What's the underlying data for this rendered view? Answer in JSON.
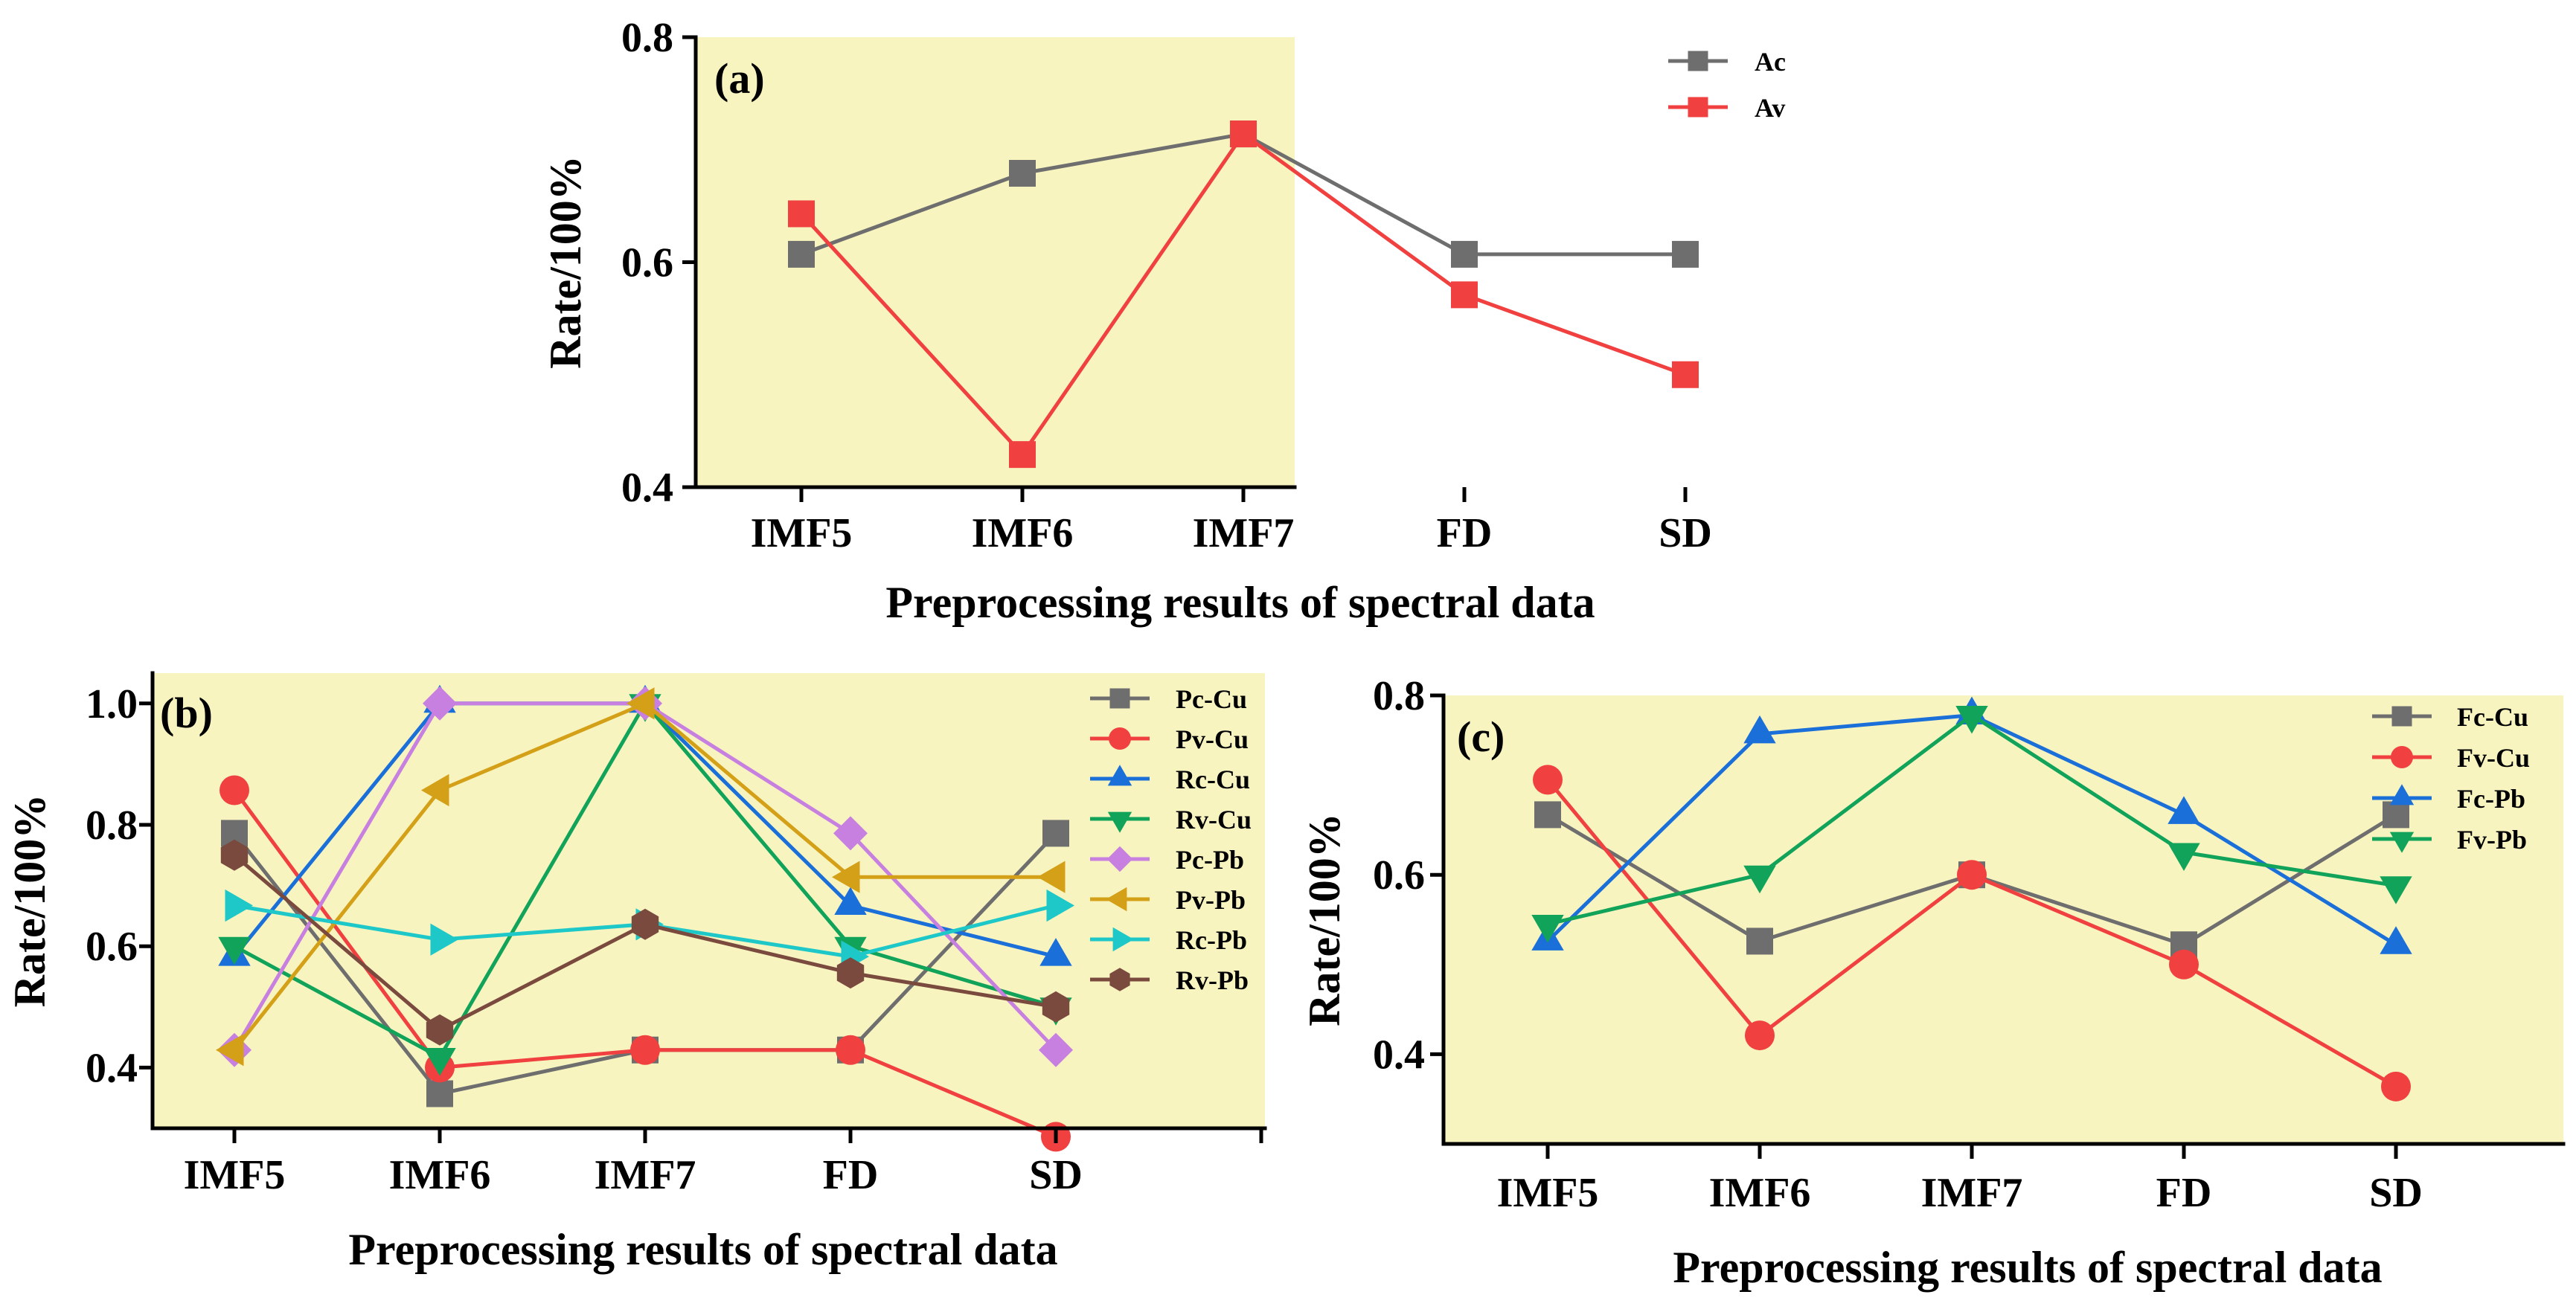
{
  "chart_data": [
    {
      "type": "line",
      "panel_label": "(a)",
      "categories": [
        "IMF5",
        "IMF6",
        "IMF7",
        "FD",
        "SD"
      ],
      "xlabel": "Preprocessing results of spectral data",
      "ylabel": "Rate/100%",
      "ylim": [
        0.4,
        0.8
      ],
      "yticks": [
        0.4,
        0.6,
        0.8
      ],
      "ytick_labels": [
        "0.4",
        "0.6",
        "0.8"
      ],
      "legend_position": "top-right",
      "series": [
        {
          "name": "Ac",
          "marker": "square",
          "color": "#6e6e6e",
          "values": [
            0.607,
            0.679,
            0.714,
            0.607,
            0.607
          ]
        },
        {
          "name": "Av",
          "marker": "square",
          "color": "#f04040",
          "values": [
            0.643,
            0.429,
            0.714,
            0.571,
            0.5
          ]
        }
      ]
    },
    {
      "type": "line",
      "panel_label": "(b)",
      "categories": [
        "IMF5",
        "IMF6",
        "IMF7",
        "FD",
        "SD"
      ],
      "xlabel": "Preprocessing results of spectral data",
      "ylabel": "Rate/100%",
      "ylim": [
        0.3,
        1.05
      ],
      "yticks": [
        0.4,
        0.6,
        0.8,
        1.0
      ],
      "ytick_labels": [
        "0.4",
        "0.6",
        "0.8",
        "1.0"
      ],
      "legend_position": "top-right",
      "series": [
        {
          "name": "Pc-Cu",
          "marker": "square",
          "color": "#6e6e6e",
          "values": [
            0.786,
            0.357,
            0.429,
            0.429,
            0.786
          ]
        },
        {
          "name": "Pv-Cu",
          "marker": "circle",
          "color": "#f04040",
          "values": [
            0.857,
            0.4,
            0.429,
            0.429,
            0.286
          ]
        },
        {
          "name": "Rc-Cu",
          "marker": "triangle-up",
          "color": "#1a6fd9",
          "values": [
            0.583,
            1.0,
            1.0,
            0.667,
            0.583
          ]
        },
        {
          "name": "Rv-Cu",
          "marker": "triangle-down",
          "color": "#12a35a",
          "values": [
            0.6,
            0.417,
            1.0,
            0.6,
            0.5
          ]
        },
        {
          "name": "Pc-Pb",
          "marker": "diamond",
          "color": "#c77fe0",
          "values": [
            0.429,
            1.0,
            1.0,
            0.786,
            0.429
          ]
        },
        {
          "name": "Pv-Pb",
          "marker": "triangle-left",
          "color": "#d4a017",
          "values": [
            0.429,
            0.857,
            1.0,
            0.714,
            0.714
          ]
        },
        {
          "name": "Rc-Pb",
          "marker": "triangle-right",
          "color": "#1ec8c8",
          "values": [
            0.667,
            0.611,
            0.636,
            0.583,
            0.667
          ]
        },
        {
          "name": "Rv-Pb",
          "marker": "hexagon",
          "color": "#7a4a3e",
          "values": [
            0.75,
            0.462,
            0.636,
            0.556,
            0.5
          ]
        }
      ]
    },
    {
      "type": "line",
      "panel_label": "(c)",
      "categories": [
        "IMF5",
        "IMF6",
        "IMF7",
        "FD",
        "SD"
      ],
      "xlabel": "Preprocessing results of spectral data",
      "ylabel": "Rate/100%",
      "ylim": [
        0.3,
        0.8
      ],
      "yticks": [
        0.4,
        0.6,
        0.8
      ],
      "ytick_labels": [
        "0.4",
        "0.6",
        "0.8"
      ],
      "legend_position": "top-right",
      "series": [
        {
          "name": "Fc-Cu",
          "marker": "square",
          "color": "#6e6e6e",
          "values": [
            0.667,
            0.526,
            0.6,
            0.522,
            0.667
          ]
        },
        {
          "name": "Fv-Cu",
          "marker": "circle",
          "color": "#f04040",
          "values": [
            0.706,
            0.421,
            0.6,
            0.5,
            0.364
          ]
        },
        {
          "name": "Fc-Pb",
          "marker": "triangle-up",
          "color": "#1a6fd9",
          "values": [
            0.526,
            0.757,
            0.778,
            0.667,
            0.522
          ]
        },
        {
          "name": "Fv-Pb",
          "marker": "triangle-down",
          "color": "#12a35a",
          "values": [
            0.545,
            0.6,
            0.778,
            0.625,
            0.588
          ]
        }
      ]
    }
  ]
}
